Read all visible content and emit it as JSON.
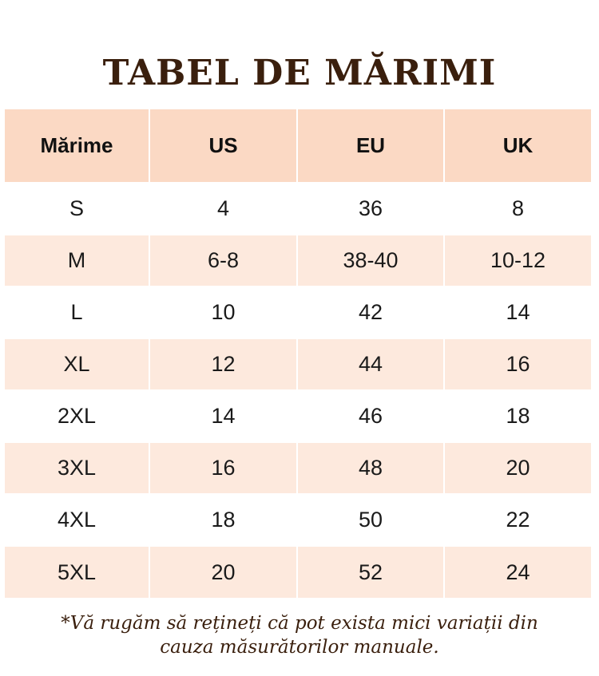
{
  "title": "TABEL DE MĂRIMI",
  "table": {
    "headers": [
      "Mărime",
      "US",
      "EU",
      "UK"
    ],
    "rows": [
      [
        "S",
        "4",
        "36",
        "8"
      ],
      [
        "M",
        "6-8",
        "38-40",
        "10-12"
      ],
      [
        "L",
        "10",
        "42",
        "14"
      ],
      [
        "XL",
        "12",
        "44",
        "16"
      ],
      [
        "2XL",
        "14",
        "46",
        "18"
      ],
      [
        "3XL",
        "16",
        "48",
        "20"
      ],
      [
        "4XL",
        "18",
        "50",
        "22"
      ],
      [
        "5XL",
        "20",
        "52",
        "24"
      ]
    ]
  },
  "note": "*Vă rugăm să rețineți că pot exista mici variații din cauza măsurătorilor manuale.",
  "colors": {
    "title": "#3a1f0d",
    "header_bg": "#fbd9c4",
    "stripe_bg": "#fde9dd",
    "text": "#1a1a1a"
  }
}
